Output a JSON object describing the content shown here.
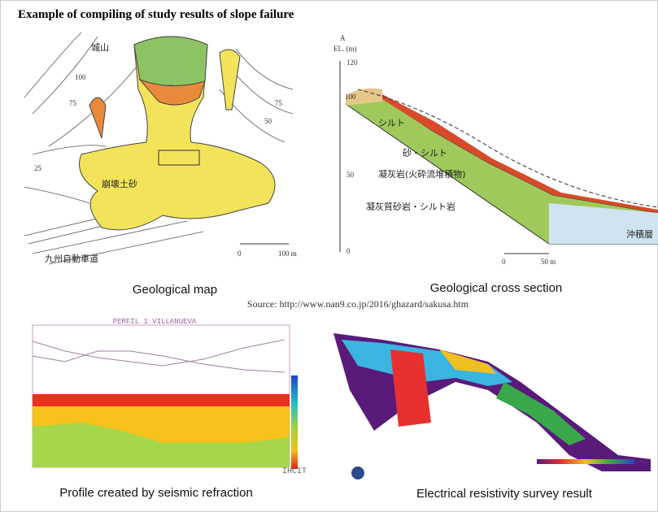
{
  "header": {
    "title": "Example of compiling of study results of slope failure"
  },
  "panels": [
    {
      "caption": "Geological map",
      "labels": [
        "城山",
        "100",
        "75",
        "50",
        "75",
        "25",
        "崩壊土砂",
        "九州自動車道",
        "0",
        "100 m"
      ]
    },
    {
      "caption": "Geological cross section",
      "labels": [
        "A",
        "EL. (m)",
        "120",
        "100",
        "50",
        "0",
        "0",
        "50 m",
        "シルト",
        "砂・シルト",
        "凝灰岩(火砕流堆積物)",
        "凝灰質砂岩・シルト岩",
        "沖積層"
      ]
    },
    {
      "caption": "Profile created by seismic refraction",
      "labels": [
        "PERFIL 1 VILLANUEVA",
        "IHCIT"
      ]
    },
    {
      "caption": "Electrical resistivity survey result",
      "labels": []
    }
  ],
  "source": "Source: http://www.nan9.co.jp/2016/ghazard/sakusa.htm"
}
